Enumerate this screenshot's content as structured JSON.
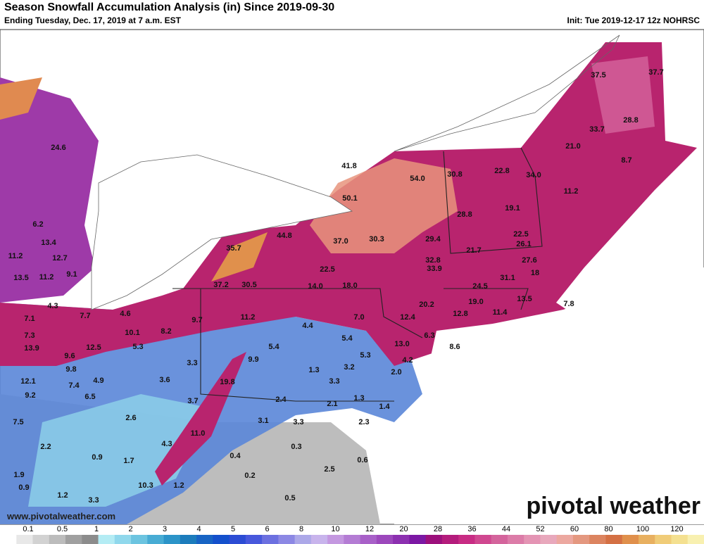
{
  "header": {
    "title": "Season Snowfall Accumulation Analysis (in) Since 2019-09-30",
    "subtitle": "Ending Tuesday, Dec. 17, 2019 at 7 a.m. EST",
    "init": "Init: Tue 2019-12-17 12z NOHRSC"
  },
  "map": {
    "labels": [
      "37.5",
      "37.7",
      "28.8",
      "33.7",
      "21.0",
      "8.7",
      "24.6",
      "41.8",
      "54.0",
      "30.8",
      "22.8",
      "34.0",
      "11.2",
      "50.1",
      "19.1",
      "28.8",
      "6.2",
      "13.4",
      "44.8",
      "37.0",
      "30.3",
      "29.4",
      "22.5",
      "11.2",
      "12.7",
      "35.7",
      "21.7",
      "26.1",
      "27.6",
      "32.8",
      "33.9",
      "22.5",
      "18",
      "13.5",
      "11.2",
      "9.1",
      "31.1",
      "37.2",
      "30.5",
      "14.0",
      "18.0",
      "24.5",
      "19.0",
      "13.5",
      "7.8",
      "4.3",
      "7.1",
      "7.7",
      "4.6",
      "9.7",
      "11.2",
      "20.2",
      "12.8",
      "11.4",
      "12.4",
      "7.0",
      "4.4",
      "10.1",
      "8.2",
      "7.3",
      "5.4",
      "6.3",
      "13.0",
      "8.6",
      "13.9",
      "12.5",
      "5.3",
      "5.4",
      "9.6",
      "5.3",
      "4.2",
      "9.9",
      "3.3",
      "1.3",
      "3.2",
      "9.8",
      "12.1",
      "7.4",
      "4.9",
      "3.6",
      "19.8",
      "3.3",
      "2.0",
      "9.2",
      "6.5",
      "3.7",
      "2.4",
      "2.1",
      "1.3",
      "1.4",
      "2.6",
      "3.1",
      "3.3",
      "2.3",
      "7.5",
      "11.0",
      "2.2",
      "4.3",
      "0.3",
      "0.9",
      "1.7",
      "0.4",
      "0.6",
      "1.9",
      "0.2",
      "2.5",
      "0.9",
      "10.3",
      "1.2",
      "1.2",
      "3.3",
      "0.5"
    ],
    "website": "www.pivotalweather.com",
    "watermark": "pivotal weather"
  },
  "colorbar": {
    "ticks": [
      "0.1",
      "0.5",
      "1",
      "2",
      "3",
      "4",
      "5",
      "6",
      "8",
      "10",
      "12",
      "20",
      "28",
      "36",
      "44",
      "52",
      "60",
      "80",
      "100",
      "120"
    ],
    "colors": [
      "#ffffff",
      "#e8e8e8",
      "#d2d2d2",
      "#bcbcbc",
      "#a0a0a0",
      "#8c8c8c",
      "#b4ecf4",
      "#90d8ec",
      "#6cc4e0",
      "#48acd4",
      "#2c94c8",
      "#1c7cbc",
      "#1864c4",
      "#1450cc",
      "#2c4cd4",
      "#4858dc",
      "#6c70e0",
      "#8c88e4",
      "#aca8e8",
      "#c8b4ec",
      "#c498e0",
      "#b47cd4",
      "#a860c8",
      "#9c48bc",
      "#8c30b0",
      "#7c18a4",
      "#9c107c",
      "#b41c7c",
      "#c82c84",
      "#d04890",
      "#d4649c",
      "#dc7ca8",
      "#e494b4",
      "#e8a8bc",
      "#eca8a0",
      "#e49880",
      "#dc8460",
      "#d47044",
      "#e0904c",
      "#e8b060",
      "#f0cc78",
      "#f4e090",
      "#f8f0b0"
    ]
  }
}
